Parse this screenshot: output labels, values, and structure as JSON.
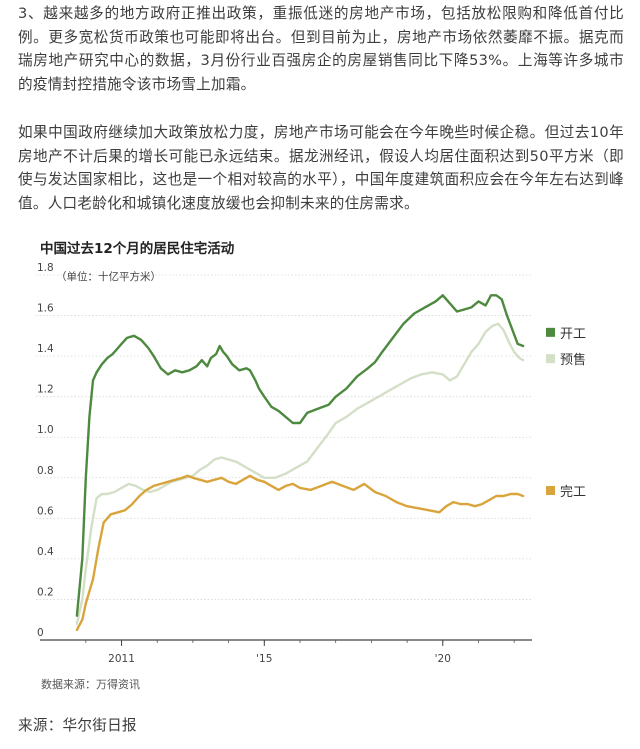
{
  "article": {
    "paragraph1": "3、越来越多的地方政府正推出政策，重振低迷的房地产市场，包括放松限购和降低首付比例。更多宽松货币政策也可能即将出台。但到目前为止，房地产市场依然萎靡不振。据克而瑞房地产研究中心的数据，3月份行业百强房企的房屋销售同比下降53%。上海等许多城市的疫情封控措施令该市场雪上加霜。",
    "paragraph2": "如果中国政府继续加大政策放松力度，房地产市场可能会在今年晚些时候企稳。但过去10年房地产不计后果的增长可能已永远结束。据龙洲经讯，假设人均居住面积达到50平方米（即使与发达国家相比，这也是一个相对较高的水平），中国年度建筑面积应会在今年左右达到峰值。人口老龄化和城镇化速度放缓也会抑制未来的住房需求。",
    "source": "来源：华尔街日报"
  },
  "chart_data": {
    "type": "line",
    "title": "中国过去12个月的居民住宅活动",
    "ylabel": "（单位：十亿平方米）",
    "note": "数据来源：万得资讯",
    "ylim": [
      0,
      1.8
    ],
    "xlim": [
      2009.5,
      2022.5
    ],
    "yticks": [
      0,
      0.2,
      0.4,
      0.6,
      0.8,
      1.0,
      1.2,
      1.4,
      1.6,
      1.8
    ],
    "ytick_labels": [
      "0",
      "0.2",
      "0.4",
      "0.6",
      "0.8",
      "1.0",
      "1.2",
      "1.4",
      "1.6",
      "1.8"
    ],
    "xticks": [
      2011,
      2015,
      2020
    ],
    "xtick_labels": [
      "2011",
      "'15",
      "'20"
    ],
    "grid": true,
    "legend": "right",
    "series": [
      {
        "name": "开工",
        "color": "#4d8a3f",
        "x": [
          2009.75,
          2009.9,
          2010.0,
          2010.1,
          2010.2,
          2010.3,
          2010.45,
          2010.6,
          2010.75,
          2010.9,
          2011.0,
          2011.15,
          2011.35,
          2011.55,
          2011.75,
          2011.9,
          2012.1,
          2012.3,
          2012.5,
          2012.7,
          2012.9,
          2013.1,
          2013.25,
          2013.4,
          2013.5,
          2013.65,
          2013.75,
          2013.85,
          2013.95,
          2014.1,
          2014.3,
          2014.5,
          2014.6,
          2014.75,
          2014.85,
          2015.0,
          2015.2,
          2015.4,
          2015.6,
          2015.8,
          2016.0,
          2016.2,
          2016.5,
          2016.8,
          2017.0,
          2017.3,
          2017.6,
          2017.9,
          2018.1,
          2018.3,
          2018.6,
          2018.9,
          2019.2,
          2019.5,
          2019.8,
          2020.0,
          2020.2,
          2020.4,
          2020.6,
          2020.8,
          2021.0,
          2021.2,
          2021.35,
          2021.5,
          2021.65,
          2021.8,
          2021.95,
          2022.1,
          2022.25
        ],
        "values": [
          0.12,
          0.4,
          0.8,
          1.1,
          1.28,
          1.32,
          1.36,
          1.39,
          1.41,
          1.44,
          1.46,
          1.49,
          1.5,
          1.48,
          1.44,
          1.4,
          1.34,
          1.31,
          1.33,
          1.32,
          1.33,
          1.35,
          1.38,
          1.35,
          1.39,
          1.41,
          1.45,
          1.42,
          1.4,
          1.36,
          1.33,
          1.34,
          1.33,
          1.28,
          1.24,
          1.2,
          1.15,
          1.13,
          1.1,
          1.07,
          1.07,
          1.12,
          1.14,
          1.16,
          1.2,
          1.24,
          1.3,
          1.34,
          1.37,
          1.42,
          1.49,
          1.56,
          1.61,
          1.64,
          1.67,
          1.7,
          1.66,
          1.62,
          1.63,
          1.64,
          1.67,
          1.65,
          1.7,
          1.7,
          1.68,
          1.6,
          1.53,
          1.46,
          1.45
        ]
      },
      {
        "name": "预售",
        "color": "#d3dfc6",
        "x": [
          2009.75,
          2009.9,
          2010.0,
          2010.15,
          2010.3,
          2010.45,
          2010.6,
          2010.8,
          2011.0,
          2011.2,
          2011.4,
          2011.6,
          2011.8,
          2012.0,
          2012.2,
          2012.4,
          2012.6,
          2012.8,
          2013.0,
          2013.2,
          2013.4,
          2013.6,
          2013.8,
          2014.0,
          2014.2,
          2014.4,
          2014.6,
          2014.8,
          2015.0,
          2015.3,
          2015.6,
          2015.9,
          2016.2,
          2016.5,
          2016.8,
          2017.0,
          2017.3,
          2017.6,
          2017.9,
          2018.2,
          2018.5,
          2018.8,
          2019.1,
          2019.4,
          2019.7,
          2020.0,
          2020.2,
          2020.4,
          2020.6,
          2020.8,
          2021.0,
          2021.2,
          2021.4,
          2021.55,
          2021.7,
          2021.85,
          2022.0,
          2022.15,
          2022.25
        ],
        "values": [
          0.08,
          0.2,
          0.35,
          0.55,
          0.7,
          0.72,
          0.72,
          0.73,
          0.75,
          0.77,
          0.76,
          0.74,
          0.73,
          0.74,
          0.76,
          0.78,
          0.79,
          0.8,
          0.81,
          0.84,
          0.86,
          0.89,
          0.9,
          0.89,
          0.88,
          0.86,
          0.84,
          0.82,
          0.8,
          0.8,
          0.82,
          0.85,
          0.88,
          0.95,
          1.02,
          1.07,
          1.1,
          1.14,
          1.17,
          1.2,
          1.23,
          1.26,
          1.29,
          1.31,
          1.32,
          1.31,
          1.28,
          1.3,
          1.36,
          1.42,
          1.46,
          1.52,
          1.55,
          1.56,
          1.53,
          1.47,
          1.42,
          1.39,
          1.38
        ]
      },
      {
        "name": "完工",
        "color": "#d9a43c",
        "x": [
          2009.75,
          2009.9,
          2010.0,
          2010.2,
          2010.35,
          2010.5,
          2010.7,
          2010.9,
          2011.1,
          2011.3,
          2011.5,
          2011.7,
          2011.9,
          2012.1,
          2012.3,
          2012.5,
          2012.7,
          2012.85,
          2013.0,
          2013.2,
          2013.4,
          2013.6,
          2013.8,
          2014.0,
          2014.2,
          2014.4,
          2014.6,
          2014.8,
          2015.0,
          2015.2,
          2015.4,
          2015.6,
          2015.8,
          2016.0,
          2016.3,
          2016.6,
          2016.9,
          2017.2,
          2017.5,
          2017.8,
          2018.1,
          2018.4,
          2018.7,
          2019.0,
          2019.3,
          2019.6,
          2019.9,
          2020.1,
          2020.3,
          2020.5,
          2020.7,
          2020.9,
          2021.1,
          2021.3,
          2021.5,
          2021.7,
          2021.9,
          2022.1,
          2022.25
        ],
        "values": [
          0.05,
          0.1,
          0.18,
          0.3,
          0.45,
          0.58,
          0.62,
          0.63,
          0.64,
          0.67,
          0.71,
          0.74,
          0.76,
          0.77,
          0.78,
          0.79,
          0.8,
          0.81,
          0.8,
          0.79,
          0.78,
          0.79,
          0.8,
          0.78,
          0.77,
          0.79,
          0.81,
          0.79,
          0.78,
          0.76,
          0.74,
          0.76,
          0.77,
          0.75,
          0.74,
          0.76,
          0.78,
          0.76,
          0.74,
          0.77,
          0.73,
          0.71,
          0.68,
          0.66,
          0.65,
          0.64,
          0.63,
          0.66,
          0.68,
          0.67,
          0.67,
          0.66,
          0.67,
          0.69,
          0.71,
          0.71,
          0.72,
          0.72,
          0.71
        ]
      }
    ]
  }
}
